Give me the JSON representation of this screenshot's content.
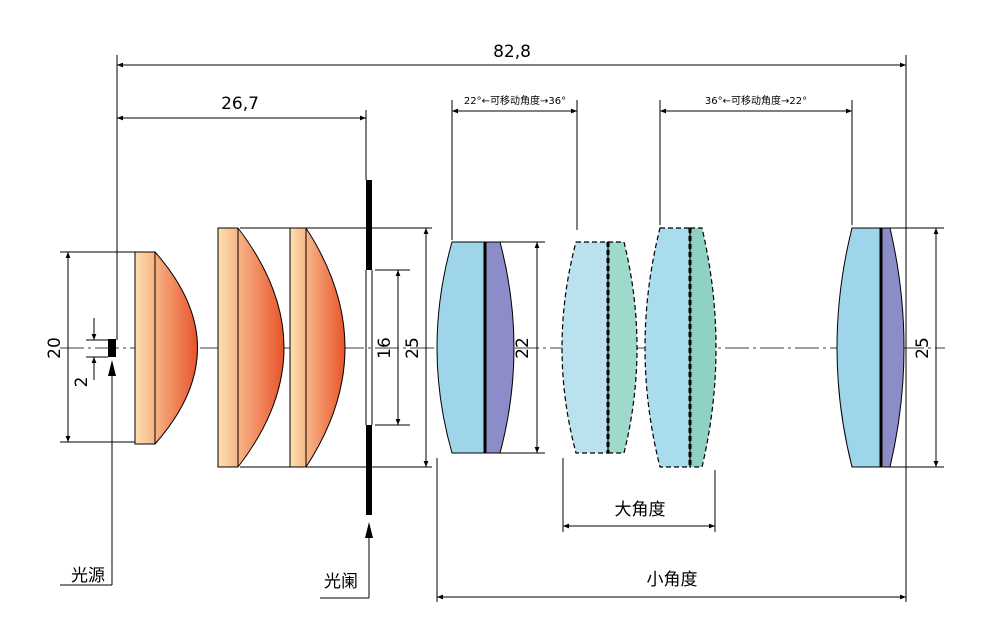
{
  "dimensions": {
    "total_length": "82,8",
    "aperture_distance": "26,7",
    "zoom_range_1": "22°←可移动角度→36°",
    "zoom_range_2": "36°←可移动角度→22°",
    "source_height": "20",
    "source_size": "2",
    "aperture_height": "16",
    "condenser_height": "25",
    "zoom_lens_height": "22",
    "front_lens_height": "25",
    "wide_angle": "大角度",
    "narrow_angle": "小角度"
  },
  "labels": {
    "light_source": "光源",
    "aperture": "光阑"
  }
}
